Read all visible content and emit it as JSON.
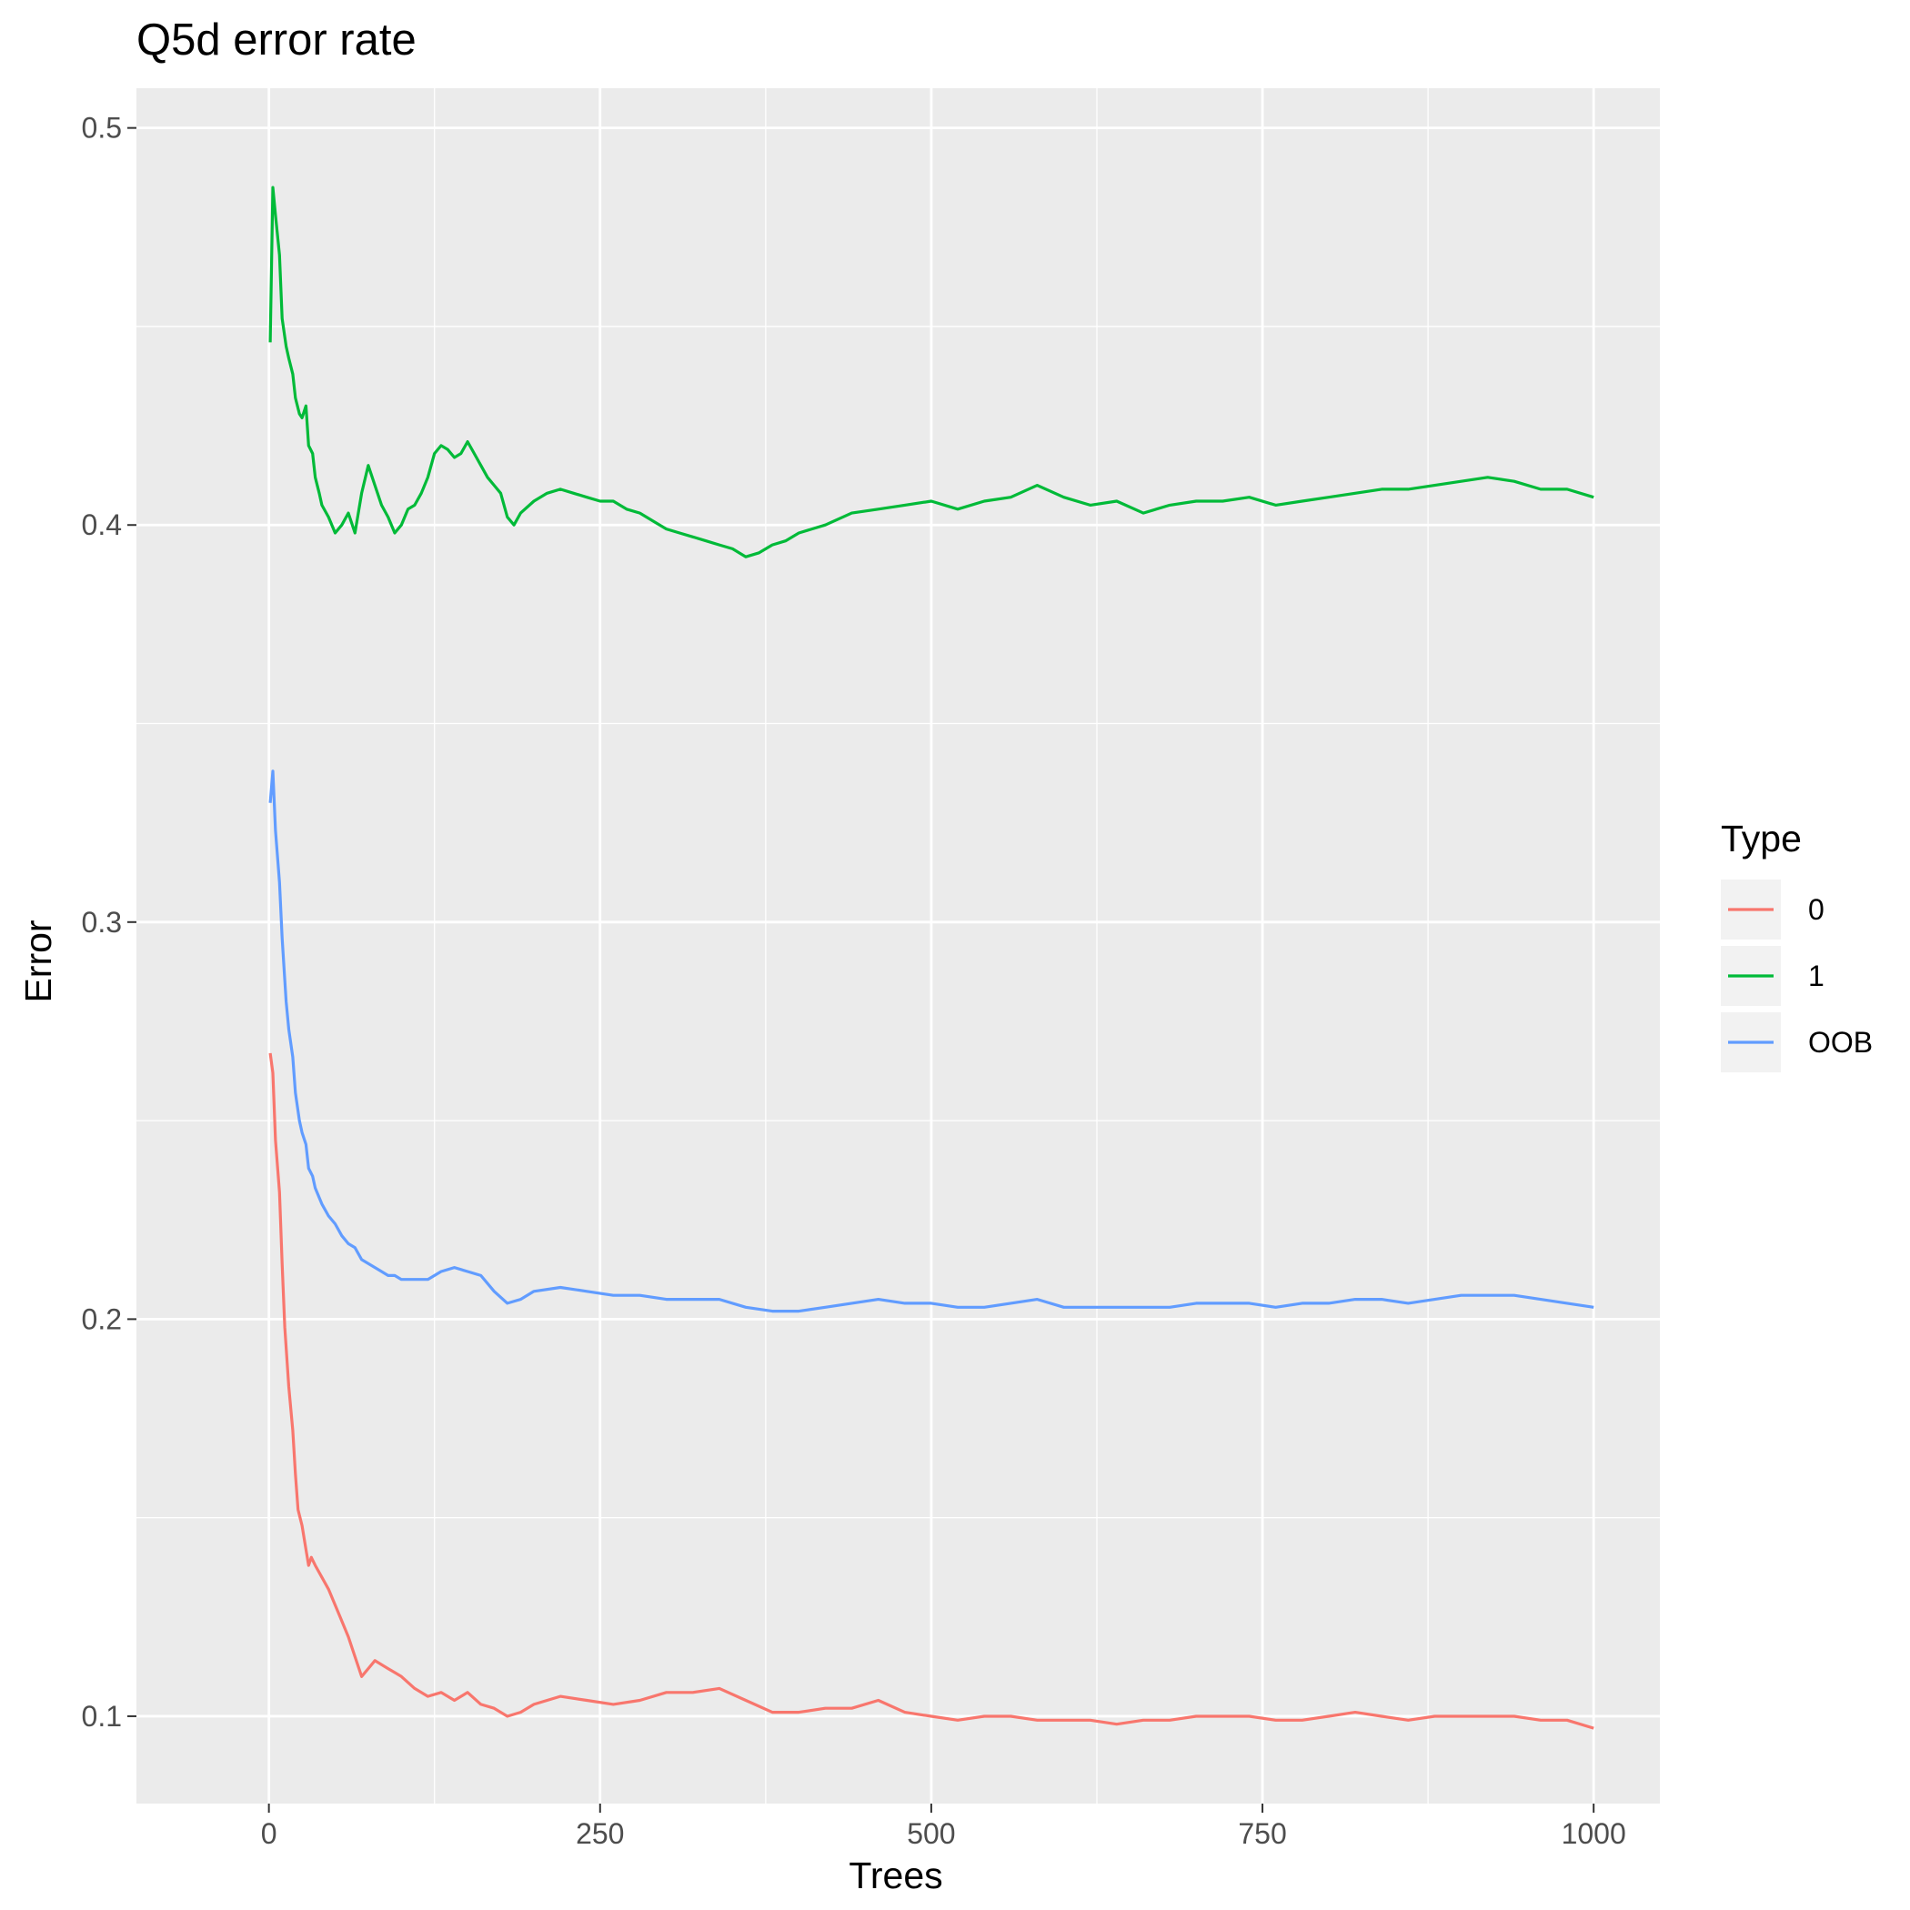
{
  "chart_data": {
    "type": "line",
    "title": "Q5d error rate",
    "xlabel": "Trees",
    "ylabel": "Error",
    "xlim": [
      -100,
      1050
    ],
    "ylim": [
      0.078,
      0.51
    ],
    "x_ticks": [
      0,
      250,
      500,
      750,
      1000
    ],
    "x_tick_labels": [
      "0",
      "250",
      "500",
      "750",
      "1000"
    ],
    "y_ticks": [
      0.1,
      0.2,
      0.3,
      0.4,
      0.5
    ],
    "y_tick_labels": [
      "0.1",
      "0.2",
      "0.3",
      "0.4",
      "0.5"
    ],
    "grid": true,
    "legend": {
      "title": "Type",
      "position": "right"
    },
    "series": [
      {
        "name": "0",
        "color": "#F8766D",
        "x": [
          1,
          3,
          5,
          8,
          10,
          12,
          15,
          18,
          20,
          22,
          25,
          28,
          30,
          32,
          35,
          40,
          45,
          50,
          55,
          60,
          65,
          70,
          75,
          80,
          85,
          90,
          95,
          100,
          110,
          120,
          130,
          140,
          150,
          160,
          170,
          180,
          190,
          200,
          220,
          240,
          260,
          280,
          300,
          320,
          340,
          360,
          380,
          400,
          420,
          440,
          460,
          480,
          500,
          520,
          540,
          560,
          580,
          600,
          620,
          640,
          660,
          680,
          700,
          720,
          740,
          760,
          780,
          800,
          820,
          840,
          860,
          880,
          900,
          920,
          940,
          960,
          980,
          1000
        ],
        "values": [
          0.267,
          0.262,
          0.245,
          0.232,
          0.214,
          0.198,
          0.183,
          0.172,
          0.161,
          0.152,
          0.148,
          0.142,
          0.138,
          0.14,
          0.138,
          0.135,
          0.132,
          0.128,
          0.124,
          0.12,
          0.115,
          0.11,
          0.112,
          0.114,
          0.113,
          0.112,
          0.111,
          0.11,
          0.107,
          0.105,
          0.106,
          0.104,
          0.106,
          0.103,
          0.102,
          0.1,
          0.101,
          0.103,
          0.105,
          0.104,
          0.103,
          0.104,
          0.106,
          0.106,
          0.107,
          0.104,
          0.101,
          0.101,
          0.102,
          0.102,
          0.104,
          0.101,
          0.1,
          0.099,
          0.1,
          0.1,
          0.099,
          0.099,
          0.099,
          0.098,
          0.099,
          0.099,
          0.1,
          0.1,
          0.1,
          0.099,
          0.099,
          0.1,
          0.101,
          0.1,
          0.099,
          0.1,
          0.1,
          0.1,
          0.1,
          0.099,
          0.099,
          0.097
        ]
      },
      {
        "name": "1",
        "color": "#00BA38",
        "x": [
          1,
          3,
          5,
          8,
          10,
          13,
          15,
          18,
          20,
          23,
          25,
          28,
          30,
          33,
          35,
          38,
          40,
          45,
          50,
          55,
          60,
          65,
          70,
          75,
          80,
          85,
          90,
          95,
          100,
          105,
          110,
          115,
          120,
          125,
          130,
          135,
          140,
          145,
          150,
          155,
          160,
          165,
          170,
          175,
          180,
          185,
          190,
          200,
          210,
          220,
          230,
          240,
          250,
          260,
          270,
          280,
          290,
          300,
          310,
          320,
          330,
          340,
          350,
          360,
          370,
          380,
          390,
          400,
          420,
          440,
          460,
          480,
          500,
          520,
          540,
          560,
          580,
          600,
          620,
          640,
          660,
          680,
          700,
          720,
          740,
          760,
          780,
          800,
          820,
          840,
          860,
          880,
          900,
          920,
          940,
          960,
          980,
          1000
        ],
        "values": [
          0.446,
          0.485,
          0.478,
          0.468,
          0.452,
          0.445,
          0.442,
          0.438,
          0.432,
          0.428,
          0.427,
          0.43,
          0.42,
          0.418,
          0.412,
          0.408,
          0.405,
          0.402,
          0.398,
          0.4,
          0.403,
          0.398,
          0.408,
          0.415,
          0.41,
          0.405,
          0.402,
          0.398,
          0.4,
          0.404,
          0.405,
          0.408,
          0.412,
          0.418,
          0.42,
          0.419,
          0.417,
          0.418,
          0.421,
          0.418,
          0.415,
          0.412,
          0.41,
          0.408,
          0.402,
          0.4,
          0.403,
          0.406,
          0.408,
          0.409,
          0.408,
          0.407,
          0.406,
          0.406,
          0.404,
          0.403,
          0.401,
          0.399,
          0.398,
          0.397,
          0.396,
          0.395,
          0.394,
          0.392,
          0.393,
          0.395,
          0.396,
          0.398,
          0.4,
          0.403,
          0.404,
          0.405,
          0.406,
          0.404,
          0.406,
          0.407,
          0.41,
          0.407,
          0.405,
          0.406,
          0.403,
          0.405,
          0.406,
          0.406,
          0.407,
          0.405,
          0.406,
          0.407,
          0.408,
          0.409,
          0.409,
          0.41,
          0.411,
          0.412,
          0.411,
          0.409,
          0.409,
          0.407
        ]
      },
      {
        "name": "OOB",
        "color": "#619CFF",
        "x": [
          1,
          3,
          5,
          8,
          10,
          13,
          15,
          18,
          20,
          23,
          25,
          28,
          30,
          33,
          35,
          40,
          45,
          50,
          55,
          60,
          65,
          70,
          75,
          80,
          85,
          90,
          95,
          100,
          110,
          120,
          130,
          140,
          150,
          160,
          170,
          180,
          190,
          200,
          220,
          240,
          260,
          280,
          300,
          320,
          340,
          360,
          380,
          400,
          420,
          440,
          460,
          480,
          500,
          520,
          540,
          560,
          580,
          600,
          620,
          640,
          660,
          680,
          700,
          720,
          740,
          760,
          780,
          800,
          820,
          840,
          860,
          880,
          900,
          920,
          940,
          960,
          980,
          1000
        ],
        "values": [
          0.33,
          0.338,
          0.323,
          0.31,
          0.296,
          0.28,
          0.273,
          0.266,
          0.257,
          0.25,
          0.247,
          0.244,
          0.238,
          0.236,
          0.233,
          0.229,
          0.226,
          0.224,
          0.221,
          0.219,
          0.218,
          0.215,
          0.214,
          0.213,
          0.212,
          0.211,
          0.211,
          0.21,
          0.21,
          0.21,
          0.212,
          0.213,
          0.212,
          0.211,
          0.207,
          0.204,
          0.205,
          0.207,
          0.208,
          0.207,
          0.206,
          0.206,
          0.205,
          0.205,
          0.205,
          0.203,
          0.202,
          0.202,
          0.203,
          0.204,
          0.205,
          0.204,
          0.204,
          0.203,
          0.203,
          0.204,
          0.205,
          0.203,
          0.203,
          0.203,
          0.203,
          0.203,
          0.204,
          0.204,
          0.204,
          0.203,
          0.204,
          0.204,
          0.205,
          0.205,
          0.204,
          0.205,
          0.206,
          0.206,
          0.206,
          0.205,
          0.204,
          0.203
        ]
      }
    ]
  }
}
